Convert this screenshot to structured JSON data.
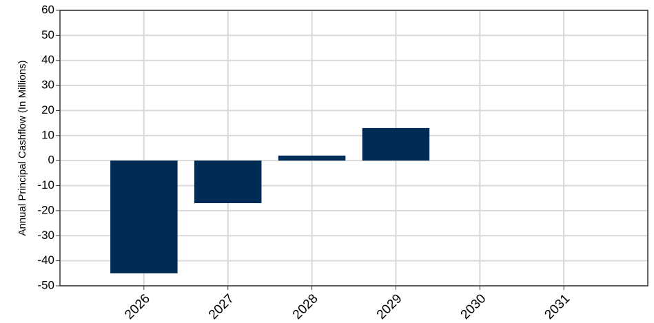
{
  "chart_data": {
    "type": "bar",
    "y_label": "Annual Principal Cashflow (In Millions)",
    "x": [
      2026,
      2027,
      2028,
      2029
    ],
    "values": [
      -45,
      -17,
      2,
      13
    ],
    "color": "#002b54",
    "xlim": [
      2025,
      2032
    ],
    "xticks": [
      2026,
      2027,
      2028,
      2029,
      2030,
      2031
    ],
    "ylim": [
      -50,
      60
    ],
    "yticks": [
      -50,
      -40,
      -30,
      -20,
      -10,
      0,
      10,
      20,
      30,
      40,
      50,
      60
    ],
    "grid": true
  }
}
